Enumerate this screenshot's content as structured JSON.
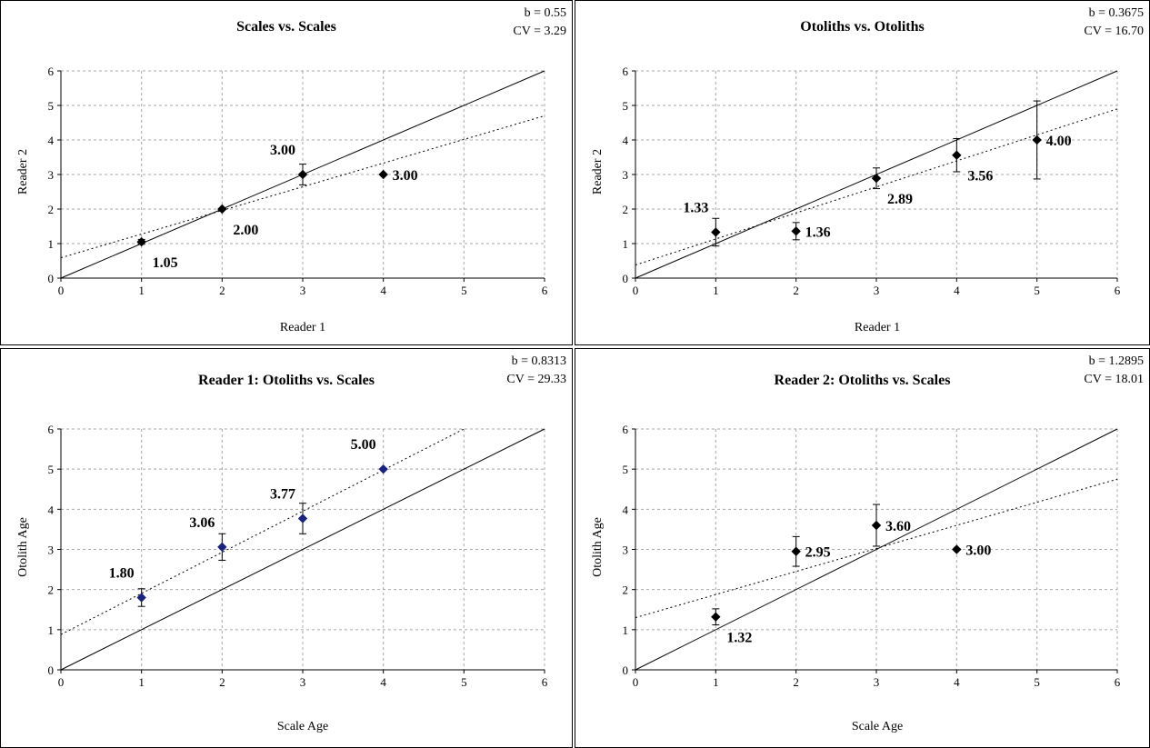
{
  "chart_data": [
    {
      "type": "scatter",
      "title": "Scales vs. Scales",
      "stats": {
        "b": "b = 0.55",
        "cv": "CV = 3.29"
      },
      "xlabel": "Reader 1",
      "ylabel": "Reader 2",
      "xlim": [
        0,
        6
      ],
      "ylim": [
        0,
        6
      ],
      "xticks": [
        "0",
        "1",
        "2",
        "3",
        "4",
        "5",
        "6"
      ],
      "yticks": [
        "0",
        "1",
        "2",
        "3",
        "4",
        "5",
        "6"
      ],
      "grid": true,
      "marker_color": "#000000",
      "points": [
        {
          "x": 1,
          "y": 1.05,
          "err": 0.07,
          "label": "1.05",
          "label_pos": "bottom-right"
        },
        {
          "x": 2,
          "y": 2.0,
          "err": 0,
          "label": "2.00",
          "label_pos": "bottom-right"
        },
        {
          "x": 3,
          "y": 3.0,
          "err": 0.3,
          "label": "3.00",
          "label_pos": "top-left"
        },
        {
          "x": 4,
          "y": 3.0,
          "err": 0,
          "label": "3.00",
          "label_pos": "right"
        }
      ],
      "identity_line": [
        [
          0,
          0
        ],
        [
          6,
          6
        ]
      ],
      "trend_line": [
        [
          0,
          0.59
        ],
        [
          6,
          4.7
        ]
      ]
    },
    {
      "type": "scatter",
      "title": "Otoliths vs. Otoliths",
      "stats": {
        "b": "b = 0.3675",
        "cv": "CV = 16.70"
      },
      "xlabel": "Reader 1",
      "ylabel": "Reader 2",
      "xlim": [
        0,
        6
      ],
      "ylim": [
        0,
        6
      ],
      "xticks": [
        "0",
        "1",
        "2",
        "3",
        "4",
        "5",
        "6"
      ],
      "yticks": [
        "0",
        "1",
        "2",
        "3",
        "4",
        "5",
        "6"
      ],
      "grid": true,
      "marker_color": "#000000",
      "points": [
        {
          "x": 1,
          "y": 1.33,
          "err": 0.4,
          "label": "1.33",
          "label_pos": "top-left"
        },
        {
          "x": 2,
          "y": 1.36,
          "err": 0.25,
          "label": "1.36",
          "label_pos": "right"
        },
        {
          "x": 3,
          "y": 2.89,
          "err": 0.3,
          "label": "2.89",
          "label_pos": "bottom-right"
        },
        {
          "x": 4,
          "y": 3.56,
          "err": 0.48,
          "label": "3.56",
          "label_pos": "bottom-right"
        },
        {
          "x": 5,
          "y": 4.0,
          "err": 1.13,
          "label": "4.00",
          "label_pos": "right"
        }
      ],
      "identity_line": [
        [
          0,
          0
        ],
        [
          6,
          6
        ]
      ],
      "trend_line": [
        [
          0,
          0.38
        ],
        [
          6,
          4.9
        ]
      ]
    },
    {
      "type": "scatter",
      "title": "Reader 1: Otoliths vs. Scales",
      "stats": {
        "b": "b = 0.8313",
        "cv": "CV = 29.33"
      },
      "xlabel": "Scale Age",
      "ylabel": "Otolith  Age",
      "xlim": [
        0,
        6
      ],
      "ylim": [
        0,
        6
      ],
      "xticks": [
        "0",
        "1",
        "2",
        "3",
        "4",
        "5",
        "6"
      ],
      "yticks": [
        "0",
        "1",
        "2",
        "3",
        "4",
        "5",
        "6"
      ],
      "grid": true,
      "marker_color": "#1a237e",
      "points": [
        {
          "x": 1,
          "y": 1.8,
          "err": 0.22,
          "label": "1.80",
          "label_pos": "top-left"
        },
        {
          "x": 2,
          "y": 3.06,
          "err": 0.33,
          "label": "3.06",
          "label_pos": "top-left"
        },
        {
          "x": 3,
          "y": 3.77,
          "err": 0.38,
          "label": "3.77",
          "label_pos": "top-left"
        },
        {
          "x": 4,
          "y": 5.0,
          "err": 0,
          "label": "5.00",
          "label_pos": "top-left"
        }
      ],
      "identity_line": [
        [
          0,
          0
        ],
        [
          6,
          6
        ]
      ],
      "trend_line": [
        [
          0,
          0.88
        ],
        [
          5,
          6.0
        ]
      ]
    },
    {
      "type": "scatter",
      "title": "Reader 2: Otoliths vs. Scales",
      "stats": {
        "b": "b = 1.2895",
        "cv": "CV = 18.01"
      },
      "xlabel": "Scale Age",
      "ylabel": "Otolith  Age",
      "xlim": [
        0,
        6
      ],
      "ylim": [
        0,
        6
      ],
      "xticks": [
        "0",
        "1",
        "2",
        "3",
        "4",
        "5",
        "6"
      ],
      "yticks": [
        "0",
        "1",
        "2",
        "3",
        "4",
        "5",
        "6"
      ],
      "grid": true,
      "marker_color": "#000000",
      "points": [
        {
          "x": 1,
          "y": 1.32,
          "err": 0.2,
          "label": "1.32",
          "label_pos": "bottom-right"
        },
        {
          "x": 2,
          "y": 2.95,
          "err": 0.37,
          "label": "2.95",
          "label_pos": "right"
        },
        {
          "x": 3,
          "y": 3.6,
          "err": 0.52,
          "label": "3.60",
          "label_pos": "right"
        },
        {
          "x": 4,
          "y": 3.0,
          "err": 0,
          "label": "3.00",
          "label_pos": "right"
        }
      ],
      "identity_line": [
        [
          0,
          0
        ],
        [
          6,
          6
        ]
      ],
      "trend_line": [
        [
          0,
          1.3
        ],
        [
          6,
          4.75
        ]
      ]
    }
  ]
}
